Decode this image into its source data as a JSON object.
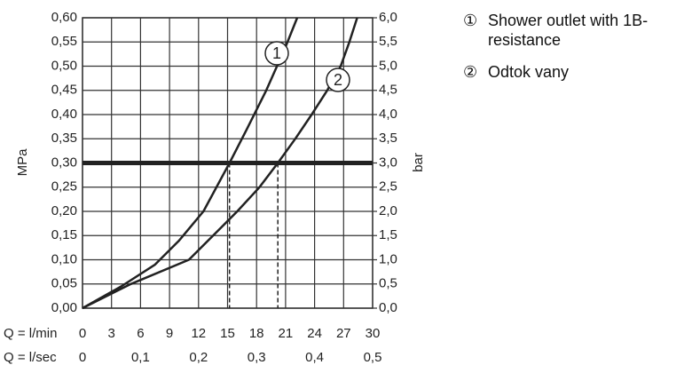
{
  "chart_data": {
    "type": "line",
    "ylabel": "MPa",
    "y2label": "bar",
    "xlabel": "Q = l/min",
    "x2label": "Q = l/sec",
    "xlim": [
      0,
      30
    ],
    "xticks": [
      0,
      3,
      6,
      9,
      12,
      15,
      18,
      21,
      24,
      27,
      30
    ],
    "x2lim": [
      0,
      0.5
    ],
    "x2ticks": [
      0,
      {
        "value": 0.1,
        "label": "0,1"
      },
      {
        "value": 0.2,
        "label": "0,2"
      },
      {
        "value": 0.3,
        "label": "0,3"
      },
      {
        "value": 0.4,
        "label": "0,4"
      },
      {
        "value": 0.5,
        "label": "0,5"
      }
    ],
    "ylim": [
      0,
      0.6
    ],
    "yticks": [
      {
        "value": 0,
        "label": "0,00"
      },
      {
        "value": 0.05,
        "label": "0,05"
      },
      {
        "value": 0.1,
        "label": "0,10"
      },
      {
        "value": 0.15,
        "label": "0,15"
      },
      {
        "value": 0.2,
        "label": "0,20"
      },
      {
        "value": 0.25,
        "label": "0,25"
      },
      {
        "value": 0.3,
        "label": "0,30"
      },
      {
        "value": 0.35,
        "label": "0,35"
      },
      {
        "value": 0.4,
        "label": "0,40"
      },
      {
        "value": 0.45,
        "label": "0,45"
      },
      {
        "value": 0.5,
        "label": "0,50"
      },
      {
        "value": 0.55,
        "label": "0,55"
      },
      {
        "value": 0.6,
        "label": "0,60"
      }
    ],
    "y2lim": [
      0,
      6
    ],
    "y2ticks": [
      {
        "value": 0,
        "label": "0,0"
      },
      {
        "value": 0.5,
        "label": "0,5"
      },
      {
        "value": 1,
        "label": "1,0"
      },
      {
        "value": 1.5,
        "label": "1,5"
      },
      {
        "value": 2,
        "label": "2,0"
      },
      {
        "value": 2.5,
        "label": "2,5"
      },
      {
        "value": 3,
        "label": "3,0"
      },
      {
        "value": 3.5,
        "label": "3,5"
      },
      {
        "value": 4,
        "label": "4,0"
      },
      {
        "value": 4.5,
        "label": "4,5"
      },
      {
        "value": 5,
        "label": "5,0"
      },
      {
        "value": 5.5,
        "label": "5,5"
      },
      {
        "value": 6,
        "label": "6,0"
      }
    ],
    "grid": true,
    "color": "#222222",
    "hline": 0.3,
    "vlines": [
      15.2,
      20.2
    ],
    "series": [
      {
        "name": "Shower outlet with 1B-resistance",
        "label": "1",
        "symbol": "①",
        "x": [
          0,
          4,
          7.5,
          10,
          12.5,
          15.2,
          17,
          19,
          21,
          22.2
        ],
        "values": [
          0,
          0.045,
          0.09,
          0.14,
          0.2,
          0.3,
          0.37,
          0.45,
          0.54,
          0.6
        ]
      },
      {
        "name": "Odtok vany",
        "label": "2",
        "symbol": "②",
        "x": [
          0,
          5,
          11,
          13.5,
          16,
          18.3,
          20.2,
          22,
          23.7,
          25.3,
          26.7,
          27.6,
          28.4
        ],
        "values": [
          0,
          0.05,
          0.1,
          0.15,
          0.2,
          0.25,
          0.3,
          0.35,
          0.4,
          0.45,
          0.5,
          0.55,
          0.6
        ]
      }
    ]
  }
}
